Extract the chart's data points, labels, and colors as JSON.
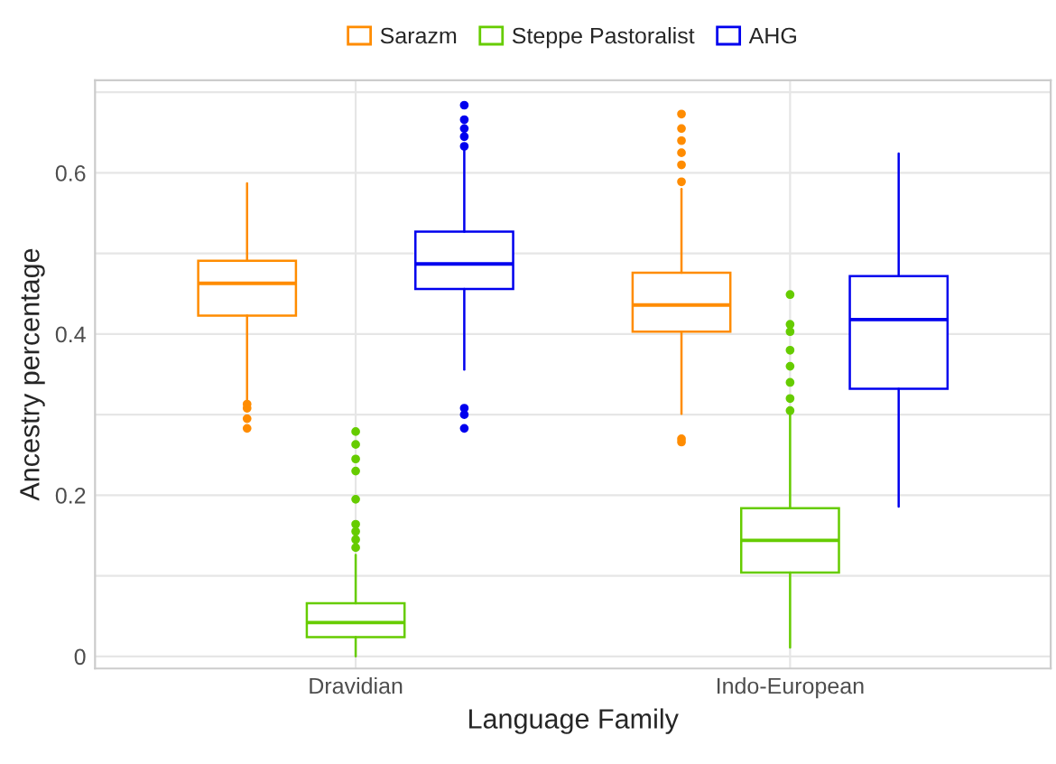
{
  "chart_data": {
    "type": "box",
    "xlabel": "Language Family",
    "ylabel": "Ancestry percentage",
    "categories": [
      "Dravidian",
      "Indo-European"
    ],
    "ylim": [
      -0.015,
      0.715
    ],
    "yticks": [
      0,
      {
        "value": 0.1,
        "label": null
      },
      0.2,
      {
        "value": 0.3,
        "label": null
      },
      0.4,
      {
        "value": 0.5,
        "label": null
      },
      0.6,
      {
        "value": 0.7,
        "label": null
      }
    ],
    "grid": true,
    "legend": "top",
    "series": [
      {
        "name": "Sarazm",
        "color": "#ff8c00",
        "boxes": [
          {
            "low": 0.319,
            "q1": 0.423,
            "median": 0.463,
            "q3": 0.491,
            "high": 0.587,
            "outliers": [
              0.313,
              0.308,
              0.295,
              0.283
            ]
          },
          {
            "low": 0.301,
            "q1": 0.403,
            "median": 0.436,
            "q3": 0.476,
            "high": 0.58,
            "outliers": [
              0.673,
              0.655,
              0.64,
              0.625,
              0.61,
              0.589,
              0.27,
              0.266
            ]
          }
        ]
      },
      {
        "name": "Steppe Pastoralist",
        "color": "#66cc00",
        "boxes": [
          {
            "low": 0.0,
            "q1": 0.024,
            "median": 0.042,
            "q3": 0.066,
            "high": 0.126,
            "outliers": [
              0.279,
              0.263,
              0.245,
              0.23,
              0.195,
              0.164,
              0.155,
              0.145,
              0.135
            ]
          },
          {
            "low": 0.011,
            "q1": 0.104,
            "median": 0.144,
            "q3": 0.184,
            "high": 0.3,
            "outliers": [
              0.449,
              0.412,
              0.403,
              0.38,
              0.36,
              0.34,
              0.32,
              0.305
            ]
          }
        ]
      },
      {
        "name": "AHG",
        "color": "#0000ee",
        "boxes": [
          {
            "low": 0.356,
            "q1": 0.456,
            "median": 0.487,
            "q3": 0.527,
            "high": 0.629,
            "outliers": [
              0.684,
              0.666,
              0.655,
              0.645,
              0.633,
              0.308,
              0.3,
              0.283
            ]
          },
          {
            "low": 0.186,
            "q1": 0.332,
            "median": 0.418,
            "q3": 0.472,
            "high": 0.624
          }
        ]
      }
    ]
  }
}
